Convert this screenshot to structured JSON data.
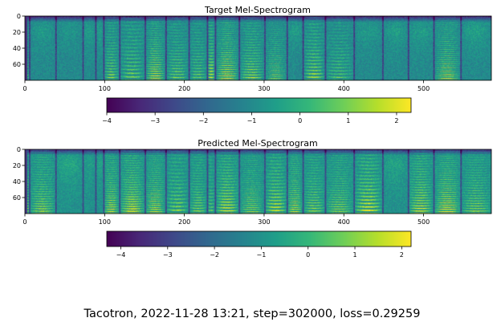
{
  "figure_caption": "Tacotron, 2022-11-28 13:21, step=302000, loss=0.29259",
  "colormap": "viridis",
  "colormap_stops": [
    "#440154",
    "#482878",
    "#3e4989",
    "#31688e",
    "#26828e",
    "#1f9e89",
    "#35b779",
    "#6ece58",
    "#b5de2b",
    "#fde725"
  ],
  "chart_data": [
    {
      "type": "heatmap",
      "title": "Target Mel-Spectrogram",
      "xlabel": "",
      "ylabel": "",
      "xlim": [
        0,
        585
      ],
      "ylim": [
        80,
        0
      ],
      "x_ticks": [
        0,
        100,
        200,
        300,
        400,
        500
      ],
      "y_ticks": [
        0,
        20,
        40,
        60
      ],
      "n_frames": 585,
      "n_mels": 80,
      "segment_boundaries": [
        5,
        38,
        72,
        88,
        98,
        118,
        150,
        176,
        205,
        228,
        238,
        268,
        300,
        328,
        348,
        376,
        412,
        448,
        480,
        512,
        546,
        585
      ],
      "colorbar": {
        "ticks": [
          -4,
          -3,
          -2,
          -1,
          0,
          1,
          2
        ],
        "range": [
          -4.0,
          2.3
        ]
      }
    },
    {
      "type": "heatmap",
      "title": "Predicted Mel-Spectrogram",
      "xlabel": "",
      "ylabel": "",
      "xlim": [
        0,
        585
      ],
      "ylim": [
        80,
        0
      ],
      "x_ticks": [
        0,
        100,
        200,
        300,
        400,
        500
      ],
      "y_ticks": [
        0,
        20,
        40,
        60
      ],
      "n_frames": 585,
      "n_mels": 80,
      "segment_boundaries": [
        5,
        38,
        72,
        88,
        98,
        118,
        150,
        176,
        205,
        228,
        238,
        268,
        300,
        328,
        348,
        376,
        412,
        448,
        480,
        512,
        546,
        585
      ],
      "colorbar": {
        "ticks": [
          -4,
          -3,
          -2,
          -1,
          0,
          1,
          2
        ],
        "range": [
          -4.3,
          2.2
        ]
      }
    }
  ]
}
